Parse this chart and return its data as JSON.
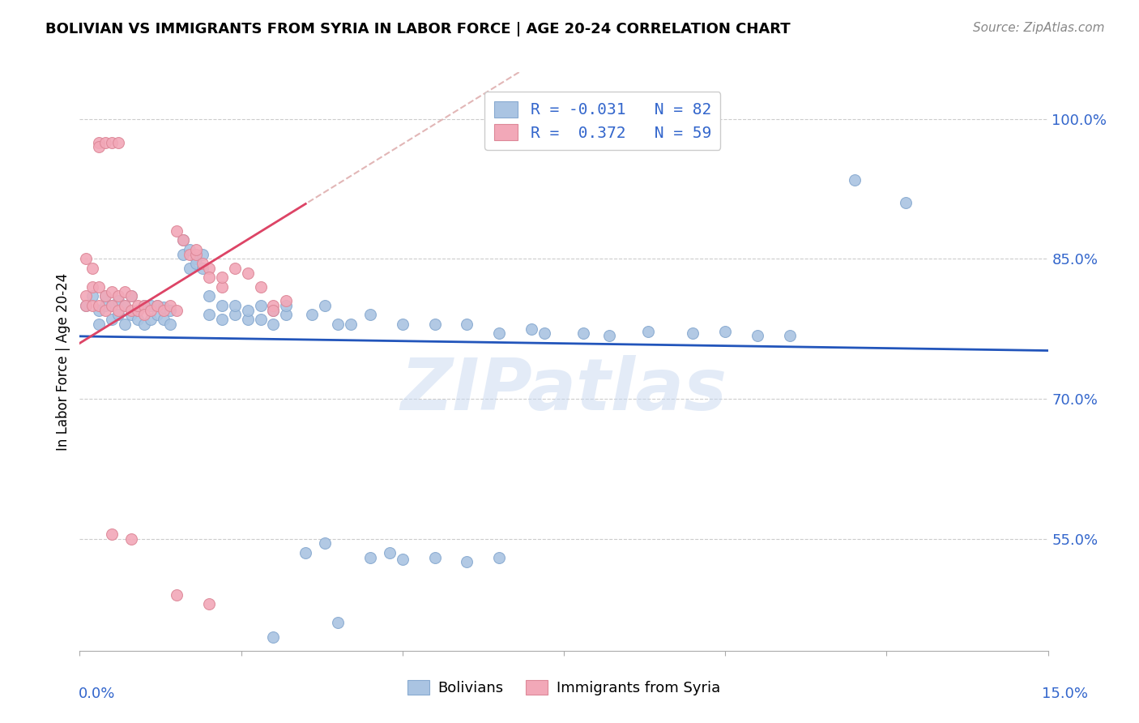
{
  "title": "BOLIVIAN VS IMMIGRANTS FROM SYRIA IN LABOR FORCE | AGE 20-24 CORRELATION CHART",
  "source": "Source: ZipAtlas.com",
  "ylabel": "In Labor Force | Age 20-24",
  "y_ticks": [
    "55.0%",
    "70.0%",
    "85.0%",
    "100.0%"
  ],
  "y_tick_vals": [
    0.55,
    0.7,
    0.85,
    1.0
  ],
  "xlim": [
    0.0,
    0.15
  ],
  "ylim": [
    0.43,
    1.05
  ],
  "watermark": "ZIPatlas",
  "blue_color": "#aac4e2",
  "pink_color": "#f2a8b8",
  "blue_line_color": "#2255bb",
  "pink_line_color": "#dd4466",
  "pink_dash_color": "#ddaaaa",
  "blue_scatter": [
    [
      0.001,
      0.8
    ],
    [
      0.002,
      0.81
    ],
    [
      0.003,
      0.795
    ],
    [
      0.003,
      0.78
    ],
    [
      0.004,
      0.8
    ],
    [
      0.004,
      0.81
    ],
    [
      0.005,
      0.785
    ],
    [
      0.005,
      0.8
    ],
    [
      0.006,
      0.79
    ],
    [
      0.006,
      0.805
    ],
    [
      0.007,
      0.78
    ],
    [
      0.007,
      0.8
    ],
    [
      0.008,
      0.79
    ],
    [
      0.008,
      0.81
    ],
    [
      0.009,
      0.785
    ],
    [
      0.009,
      0.795
    ],
    [
      0.01,
      0.78
    ],
    [
      0.01,
      0.8
    ],
    [
      0.011,
      0.785
    ],
    [
      0.011,
      0.8
    ],
    [
      0.012,
      0.79
    ],
    [
      0.012,
      0.8
    ],
    [
      0.013,
      0.785
    ],
    [
      0.013,
      0.798
    ],
    [
      0.014,
      0.78
    ],
    [
      0.014,
      0.795
    ],
    [
      0.016,
      0.87
    ],
    [
      0.016,
      0.855
    ],
    [
      0.017,
      0.84
    ],
    [
      0.017,
      0.86
    ],
    [
      0.018,
      0.85
    ],
    [
      0.018,
      0.845
    ],
    [
      0.019,
      0.84
    ],
    [
      0.019,
      0.855
    ],
    [
      0.02,
      0.79
    ],
    [
      0.02,
      0.81
    ],
    [
      0.022,
      0.785
    ],
    [
      0.022,
      0.8
    ],
    [
      0.024,
      0.79
    ],
    [
      0.024,
      0.8
    ],
    [
      0.026,
      0.785
    ],
    [
      0.026,
      0.795
    ],
    [
      0.028,
      0.785
    ],
    [
      0.028,
      0.8
    ],
    [
      0.03,
      0.78
    ],
    [
      0.03,
      0.795
    ],
    [
      0.032,
      0.79
    ],
    [
      0.032,
      0.8
    ],
    [
      0.036,
      0.79
    ],
    [
      0.038,
      0.8
    ],
    [
      0.04,
      0.78
    ],
    [
      0.042,
      0.78
    ],
    [
      0.045,
      0.79
    ],
    [
      0.05,
      0.78
    ],
    [
      0.055,
      0.78
    ],
    [
      0.06,
      0.78
    ],
    [
      0.065,
      0.77
    ],
    [
      0.07,
      0.775
    ],
    [
      0.072,
      0.77
    ],
    [
      0.078,
      0.77
    ],
    [
      0.082,
      0.768
    ],
    [
      0.088,
      0.772
    ],
    [
      0.095,
      0.77
    ],
    [
      0.1,
      0.772
    ],
    [
      0.105,
      0.768
    ],
    [
      0.11,
      0.768
    ],
    [
      0.035,
      0.535
    ],
    [
      0.038,
      0.545
    ],
    [
      0.045,
      0.53
    ],
    [
      0.048,
      0.535
    ],
    [
      0.05,
      0.528
    ],
    [
      0.055,
      0.53
    ],
    [
      0.06,
      0.525
    ],
    [
      0.065,
      0.53
    ],
    [
      0.04,
      0.46
    ],
    [
      0.03,
      0.445
    ],
    [
      0.12,
      0.935
    ],
    [
      0.128,
      0.91
    ]
  ],
  "pink_scatter": [
    [
      0.001,
      0.81
    ],
    [
      0.001,
      0.8
    ],
    [
      0.001,
      0.85
    ],
    [
      0.002,
      0.8
    ],
    [
      0.002,
      0.82
    ],
    [
      0.002,
      0.84
    ],
    [
      0.003,
      0.8
    ],
    [
      0.003,
      0.82
    ],
    [
      0.003,
      0.975
    ],
    [
      0.003,
      0.97
    ],
    [
      0.004,
      0.795
    ],
    [
      0.004,
      0.81
    ],
    [
      0.004,
      0.975
    ],
    [
      0.005,
      0.8
    ],
    [
      0.005,
      0.815
    ],
    [
      0.005,
      0.975
    ],
    [
      0.006,
      0.795
    ],
    [
      0.006,
      0.81
    ],
    [
      0.006,
      0.975
    ],
    [
      0.007,
      0.8
    ],
    [
      0.007,
      0.815
    ],
    [
      0.008,
      0.795
    ],
    [
      0.008,
      0.81
    ],
    [
      0.009,
      0.795
    ],
    [
      0.009,
      0.8
    ],
    [
      0.01,
      0.8
    ],
    [
      0.01,
      0.79
    ],
    [
      0.011,
      0.795
    ],
    [
      0.012,
      0.8
    ],
    [
      0.013,
      0.795
    ],
    [
      0.014,
      0.8
    ],
    [
      0.015,
      0.795
    ],
    [
      0.015,
      0.88
    ],
    [
      0.016,
      0.87
    ],
    [
      0.017,
      0.855
    ],
    [
      0.018,
      0.855
    ],
    [
      0.018,
      0.86
    ],
    [
      0.019,
      0.845
    ],
    [
      0.02,
      0.84
    ],
    [
      0.02,
      0.83
    ],
    [
      0.022,
      0.82
    ],
    [
      0.022,
      0.83
    ],
    [
      0.024,
      0.84
    ],
    [
      0.026,
      0.835
    ],
    [
      0.028,
      0.82
    ],
    [
      0.03,
      0.8
    ],
    [
      0.03,
      0.795
    ],
    [
      0.032,
      0.805
    ],
    [
      0.005,
      0.555
    ],
    [
      0.008,
      0.55
    ],
    [
      0.015,
      0.49
    ],
    [
      0.02,
      0.48
    ]
  ]
}
